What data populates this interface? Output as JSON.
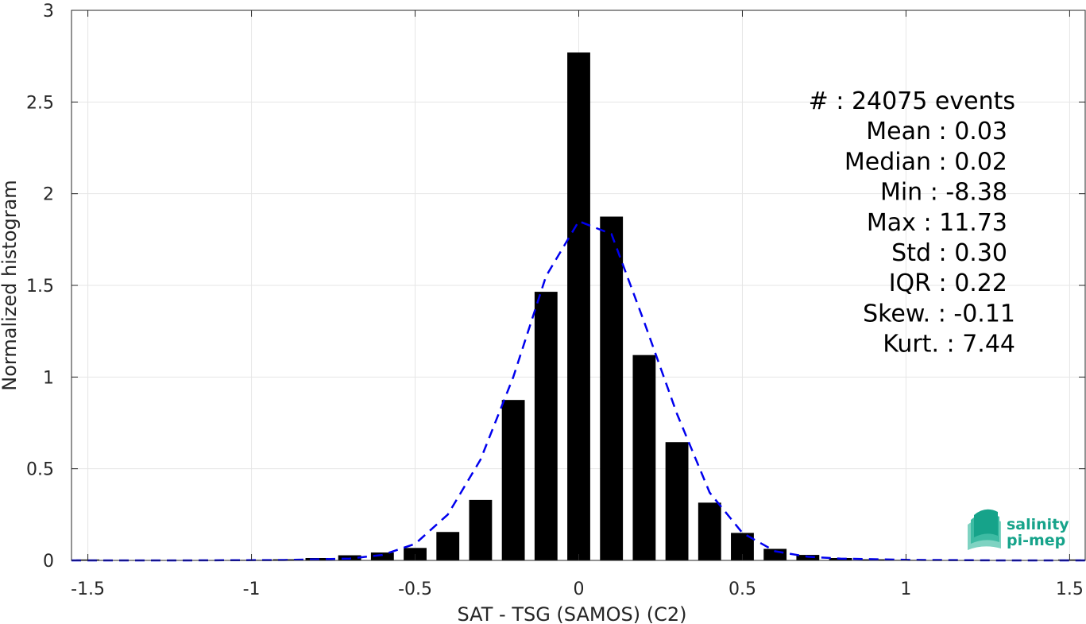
{
  "chart_data": {
    "type": "bar",
    "title": "",
    "xlabel": "SAT - TSG (SAMOS) (C2)",
    "ylabel": "Normalized histogram",
    "xlim": [
      -1.55,
      1.55
    ],
    "ylim": [
      0,
      3
    ],
    "grid": true,
    "x_ticks": [
      "-1.5",
      "-1",
      "-0.5",
      "0",
      "0.5",
      "1",
      "1.5"
    ],
    "x_tick_values": [
      -1.5,
      -1,
      -0.5,
      0,
      0.5,
      1,
      1.5
    ],
    "y_ticks": [
      "0",
      "0.5",
      "1",
      "1.5",
      "2",
      "2.5",
      "3"
    ],
    "y_tick_values": [
      0,
      0.5,
      1,
      1.5,
      2,
      2.5,
      3
    ],
    "bin_width": 0.1,
    "bar_color": "#000000",
    "bars": {
      "x": [
        -1.5,
        -1.4,
        -1.3,
        -1.2,
        -1.1,
        -1.0,
        -0.9,
        -0.8,
        -0.7,
        -0.6,
        -0.5,
        -0.4,
        -0.3,
        -0.2,
        -0.1,
        0.0,
        0.1,
        0.2,
        0.3,
        0.4,
        0.5,
        0.6,
        0.7,
        0.8,
        0.9,
        1.0,
        1.1,
        1.2,
        1.3,
        1.4,
        1.5
      ],
      "values": [
        0.005,
        0.002,
        0.002,
        0.002,
        0.002,
        0.003,
        0.006,
        0.013,
        0.028,
        0.043,
        0.068,
        0.155,
        0.33,
        0.875,
        1.465,
        2.77,
        1.875,
        1.12,
        0.645,
        0.315,
        0.15,
        0.063,
        0.03,
        0.013,
        0.006,
        0.003,
        0.002,
        0.002,
        0.002,
        0.002,
        0.005
      ]
    },
    "fit_curve": {
      "style": "dashed",
      "color": "#0000ee",
      "x": [
        -1.55,
        -1.2,
        -0.9,
        -0.7,
        -0.6,
        -0.5,
        -0.4,
        -0.3,
        -0.2,
        -0.1,
        0.0,
        0.1,
        0.2,
        0.3,
        0.4,
        0.5,
        0.6,
        0.7,
        0.8,
        1.0,
        1.3,
        1.55
      ],
      "y": [
        0.0,
        0.0,
        0.002,
        0.01,
        0.03,
        0.09,
        0.25,
        0.55,
        1.0,
        1.55,
        1.85,
        1.78,
        1.3,
        0.8,
        0.37,
        0.15,
        0.05,
        0.02,
        0.01,
        0.003,
        0.0,
        0.0
      ]
    },
    "annotations": [
      "#  : 24075 events",
      "Mean : 0.03",
      "Median : 0.02",
      "Min : -8.38",
      "Max : 11.73",
      "Std : 0.30",
      "IQR : 0.22",
      "Skew. : -0.11",
      "Kurt. : 7.44"
    ]
  },
  "logo": {
    "line1": "salinity",
    "line2": "pi-mep",
    "color": "#16a38a"
  }
}
